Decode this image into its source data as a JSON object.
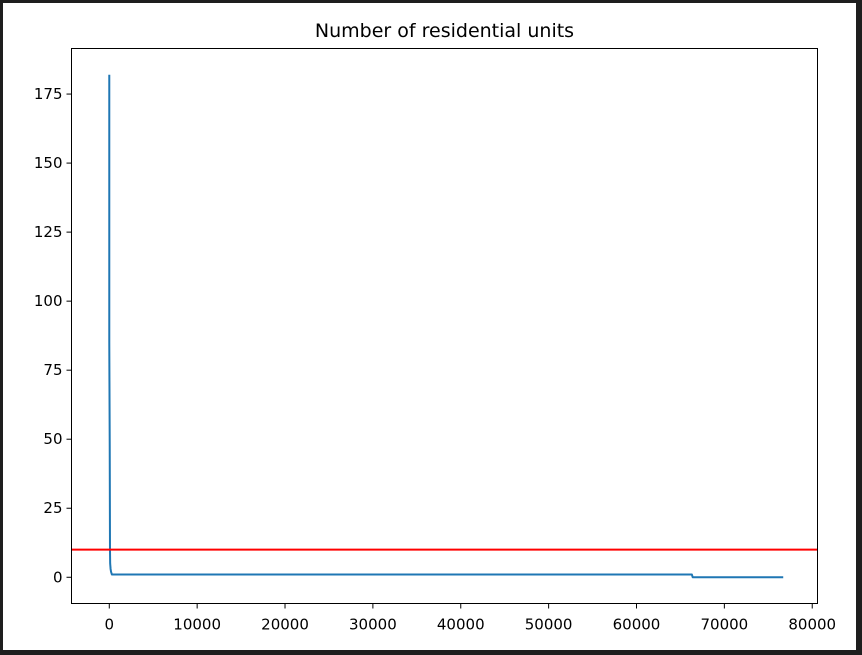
{
  "chart_data": {
    "type": "line",
    "title": "Number of residential units",
    "xlabel": "",
    "ylabel": "",
    "xlim": [
      -4300,
      80600
    ],
    "ylim": [
      -9.5,
      191.5
    ],
    "xticks": [
      0,
      10000,
      20000,
      30000,
      40000,
      50000,
      60000,
      70000,
      80000
    ],
    "xtick_labels": [
      "0",
      "10000",
      "20000",
      "30000",
      "40000",
      "50000",
      "60000",
      "70000",
      "80000"
    ],
    "yticks": [
      0,
      25,
      50,
      75,
      100,
      125,
      150,
      175
    ],
    "ytick_labels": [
      "0",
      "25",
      "50",
      "75",
      "100",
      "125",
      "150",
      "175"
    ],
    "grid": false,
    "series": [
      {
        "name": "",
        "color": "#1f77b4",
        "x": [
          0,
          0,
          50,
          80,
          100,
          150,
          200,
          300,
          400,
          500,
          66300,
          66400,
          76700
        ],
        "y": [
          182,
          85,
          48,
          10,
          5,
          3,
          2,
          1,
          1,
          1,
          1,
          0,
          0
        ]
      }
    ],
    "hlines": [
      {
        "y": 10,
        "color": "#ff0000"
      }
    ]
  }
}
